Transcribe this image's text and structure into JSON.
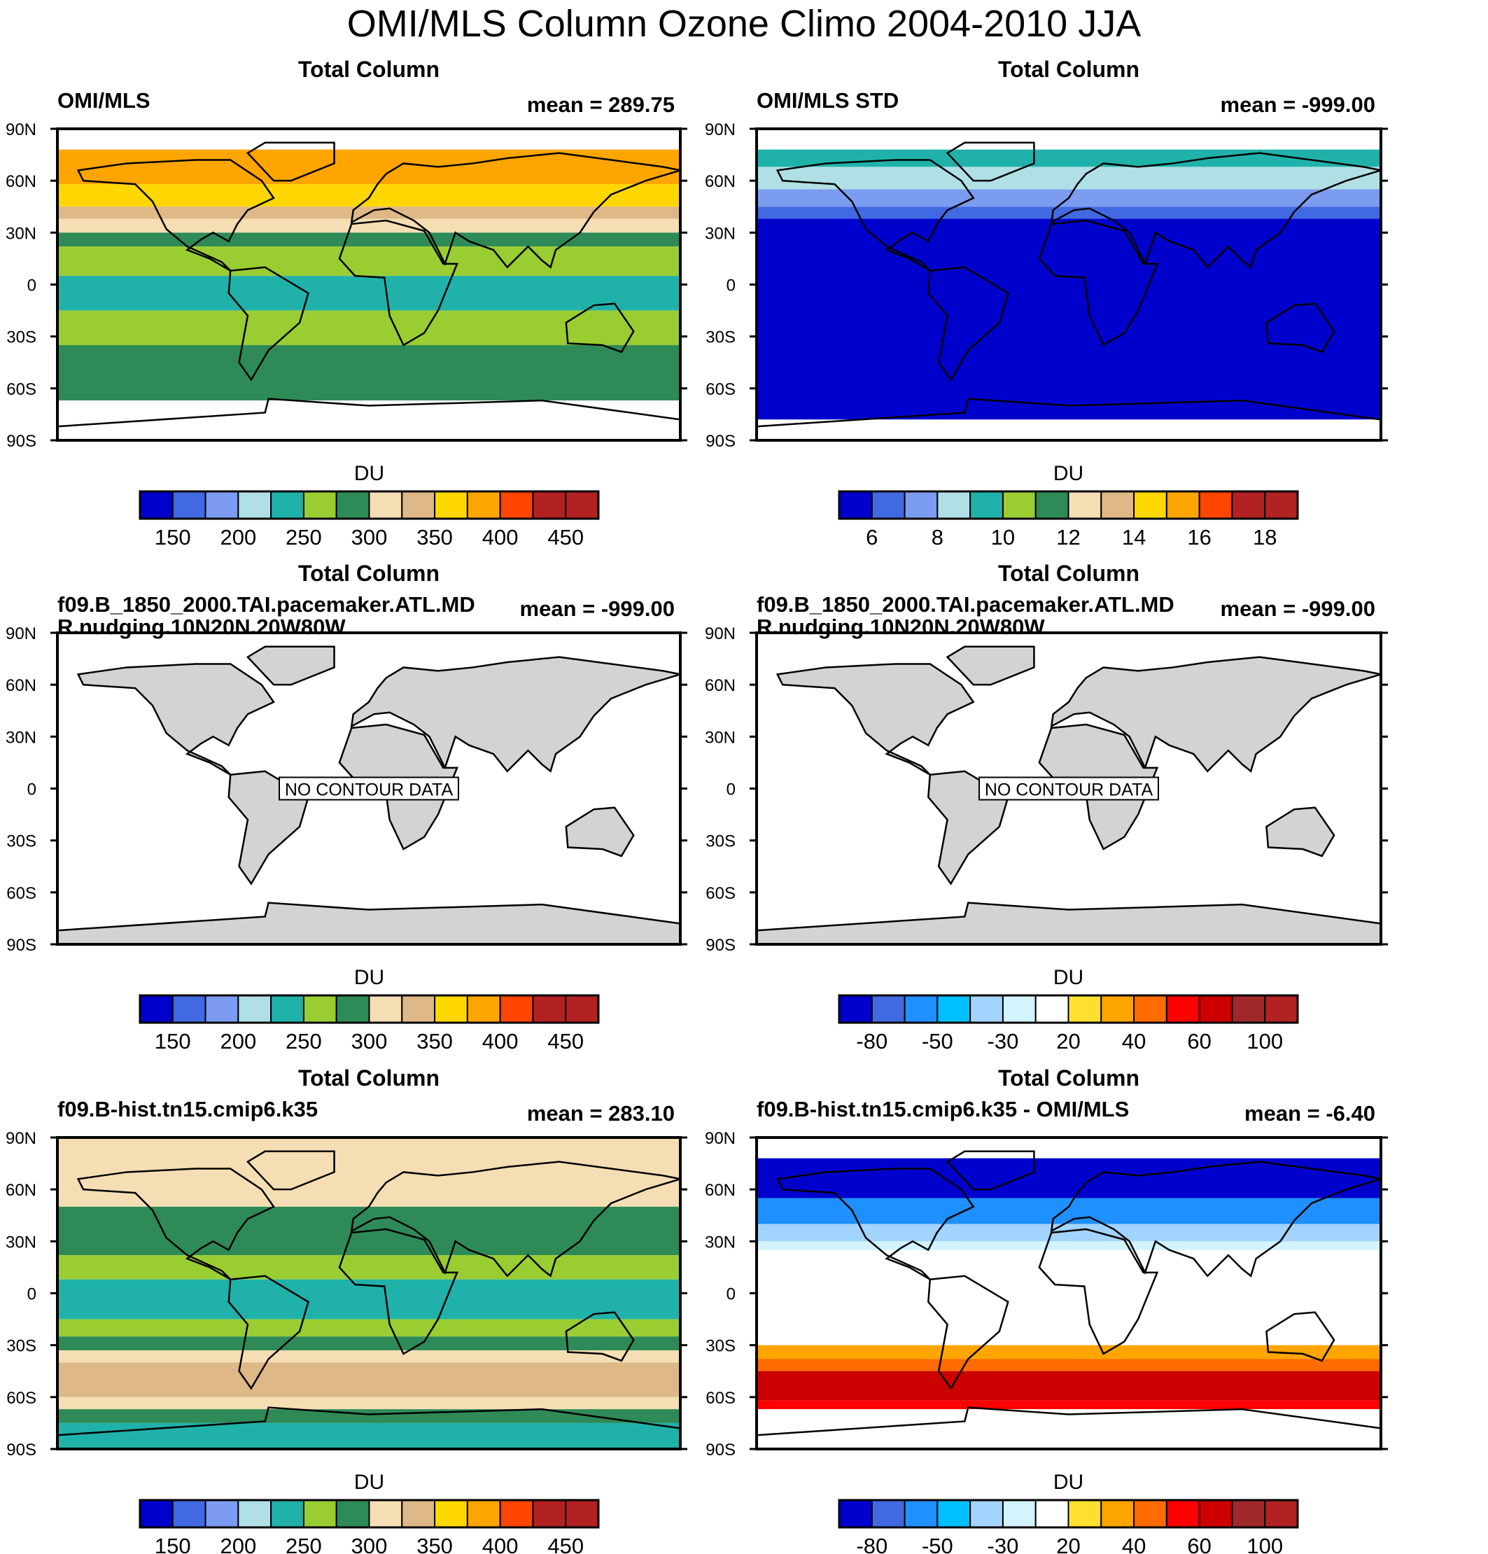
{
  "title": "OMI/MLS Column Ozone Climo 2004-2010 JJA",
  "lat_labels": [
    "90N",
    "60N",
    "30N",
    "0",
    "30S",
    "60S",
    "90S"
  ],
  "colorbar_unit": "DU",
  "panels": [
    {
      "header": "Total Column",
      "left": "OMI/MLS",
      "right": "mean = 289.75",
      "colorbar": "abs",
      "no_data": false,
      "bands": [
        [
          90,
          78,
          "#ffffff"
        ],
        [
          78,
          58,
          "#ffa500"
        ],
        [
          58,
          45,
          "#ffd700"
        ],
        [
          45,
          38,
          "#deb887"
        ],
        [
          38,
          30,
          "#f5deb3"
        ],
        [
          30,
          22,
          "#2e8b57"
        ],
        [
          22,
          5,
          "#9acd32"
        ],
        [
          5,
          -15,
          "#20b2aa"
        ],
        [
          -15,
          -35,
          "#9acd32"
        ],
        [
          -35,
          -67,
          "#2e8b57"
        ],
        [
          -67,
          -90,
          "#ffffff"
        ]
      ]
    },
    {
      "header": "Total Column",
      "left": "OMI/MLS STD",
      "right": "mean = -999.00",
      "colorbar": "std",
      "no_data": false,
      "bands": [
        [
          90,
          78,
          "#ffffff"
        ],
        [
          78,
          68,
          "#20b2aa"
        ],
        [
          68,
          55,
          "#b0e0e6"
        ],
        [
          55,
          45,
          "#7b9cf0"
        ],
        [
          45,
          38,
          "#4169e1"
        ],
        [
          38,
          -78,
          "#0000cd"
        ],
        [
          -78,
          -90,
          "#ffffff"
        ]
      ]
    },
    {
      "header": "Total Column",
      "left": "f09.B_1850_2000.TAI.pacemaker.ATL.MDR.nudging.10N20N.20W80W",
      "right": "mean = -999.00",
      "colorbar": "abs",
      "no_data": true,
      "no_data_label": "NO CONTOUR DATA",
      "bands": []
    },
    {
      "header": "Total Column",
      "left": "f09.B_1850_2000.TAI.pacemaker.ATL.MDR.nudging.10N20N.20W80W",
      "right": "mean = -999.00",
      "colorbar": "diff",
      "no_data": true,
      "no_data_label": "NO CONTOUR DATA",
      "bands": []
    },
    {
      "header": "Total Column",
      "left": "f09.B-hist.tn15.cmip6.k35",
      "right": "mean = 283.10",
      "colorbar": "abs",
      "no_data": false,
      "bands": [
        [
          90,
          50,
          "#f5deb3"
        ],
        [
          50,
          22,
          "#2e8b57"
        ],
        [
          22,
          8,
          "#9acd32"
        ],
        [
          8,
          -15,
          "#20b2aa"
        ],
        [
          -15,
          -25,
          "#9acd32"
        ],
        [
          -25,
          -33,
          "#2e8b57"
        ],
        [
          -33,
          -40,
          "#f5deb3"
        ],
        [
          -40,
          -60,
          "#deb887"
        ],
        [
          -60,
          -67,
          "#f5deb3"
        ],
        [
          -67,
          -75,
          "#2e8b57"
        ],
        [
          -75,
          -90,
          "#20b2aa"
        ]
      ]
    },
    {
      "header": "Total Column",
      "left": "f09.B-hist.tn15.cmip6.k35 - OMI/MLS",
      "right": "mean =  -6.40",
      "colorbar": "diff",
      "no_data": false,
      "bands": [
        [
          90,
          78,
          "#ffffff"
        ],
        [
          78,
          55,
          "#0000cd"
        ],
        [
          55,
          40,
          "#1e90ff"
        ],
        [
          40,
          30,
          "#a3d3ff"
        ],
        [
          30,
          25,
          "#d2f3ff"
        ],
        [
          25,
          -30,
          "#ffffff"
        ],
        [
          -30,
          -38,
          "#ffa500"
        ],
        [
          -38,
          -45,
          "#ff6b00"
        ],
        [
          -45,
          -62,
          "#cc0000"
        ],
        [
          -62,
          -67,
          "#ff0000"
        ],
        [
          -67,
          -90,
          "#ffffff"
        ]
      ]
    }
  ],
  "colorbars": {
    "abs": {
      "colors": [
        "#0000cd",
        "#4169e1",
        "#7b9cf0",
        "#b0e0e6",
        "#20b2aa",
        "#9acd32",
        "#2e8b57",
        "#f5deb3",
        "#deb887",
        "#ffd700",
        "#ffa500",
        "#ff4500",
        "#b22222",
        "#b22222"
      ],
      "labels": [
        "150",
        "200",
        "250",
        "300",
        "350",
        "400",
        "450"
      ]
    },
    "std": {
      "colors": [
        "#0000cd",
        "#4169e1",
        "#7b9cf0",
        "#b0e0e6",
        "#20b2aa",
        "#9acd32",
        "#2e8b57",
        "#f5deb3",
        "#deb887",
        "#ffd700",
        "#ffa500",
        "#ff4500",
        "#b22222",
        "#b22222"
      ],
      "labels": [
        "6",
        "8",
        "10",
        "12",
        "14",
        "16",
        "18"
      ]
    },
    "diff": {
      "colors": [
        "#0000cd",
        "#4169e1",
        "#1e90ff",
        "#00bfff",
        "#a3d3ff",
        "#d2f3ff",
        "#ffffff",
        "#ffe030",
        "#ffa500",
        "#ff6b00",
        "#ff0000",
        "#cc0000",
        "#a02828",
        "#b22222"
      ],
      "labels": [
        "-80",
        "-50",
        "-30",
        "20",
        "40",
        "60",
        "100"
      ]
    }
  }
}
